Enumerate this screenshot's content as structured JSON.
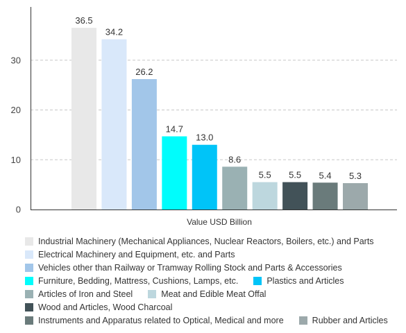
{
  "chart_data": {
    "type": "bar",
    "xlabel": "Value USD Billion",
    "ylabel": "",
    "ylim": [
      0,
      40
    ],
    "yticks": [
      0,
      10,
      20,
      30
    ],
    "grid": true,
    "legend_placement": "bottom",
    "series": [
      {
        "name": "Industrial Machinery (Mechanical Appliances, Nuclear Reactors, Boilers, etc.) and Parts",
        "value": 36.5,
        "label": "36.5",
        "color": "#e8e8e8"
      },
      {
        "name": "Electrical Machinery and Equipment, etc. and Parts",
        "value": 34.2,
        "label": "34.2",
        "color": "#d9e8fa"
      },
      {
        "name": "Vehicles other than Railway or Tramway Rolling Stock and Parts & Accessories",
        "value": 26.2,
        "label": "26.2",
        "color": "#a2c6e9"
      },
      {
        "name": "Furniture, Bedding, Mattress, Cushions, Lamps, etc.",
        "value": 14.7,
        "label": "14.7",
        "color": "#00fdfc"
      },
      {
        "name": "Plastics and Articles",
        "value": 13.0,
        "label": "13.0",
        "color": "#00c4f8"
      },
      {
        "name": "Articles of Iron and Steel",
        "value": 8.6,
        "label": "8.6",
        "color": "#9ab1b3"
      },
      {
        "name": "Meat and Edible Meat Offal",
        "value": 5.5,
        "label": "5.5",
        "color": "#bdd7de"
      },
      {
        "name": "Wood and Articles, Wood Charcoal",
        "value": 5.5,
        "label": "5.5",
        "color": "#425258"
      },
      {
        "name": "Instruments and Apparatus related to Optical, Medical and more",
        "value": 5.4,
        "label": "5.4",
        "color": "#6a7b7b"
      },
      {
        "name": "Rubber and Articles",
        "value": 5.3,
        "label": "5.3",
        "color": "#9ca9ab"
      }
    ]
  }
}
